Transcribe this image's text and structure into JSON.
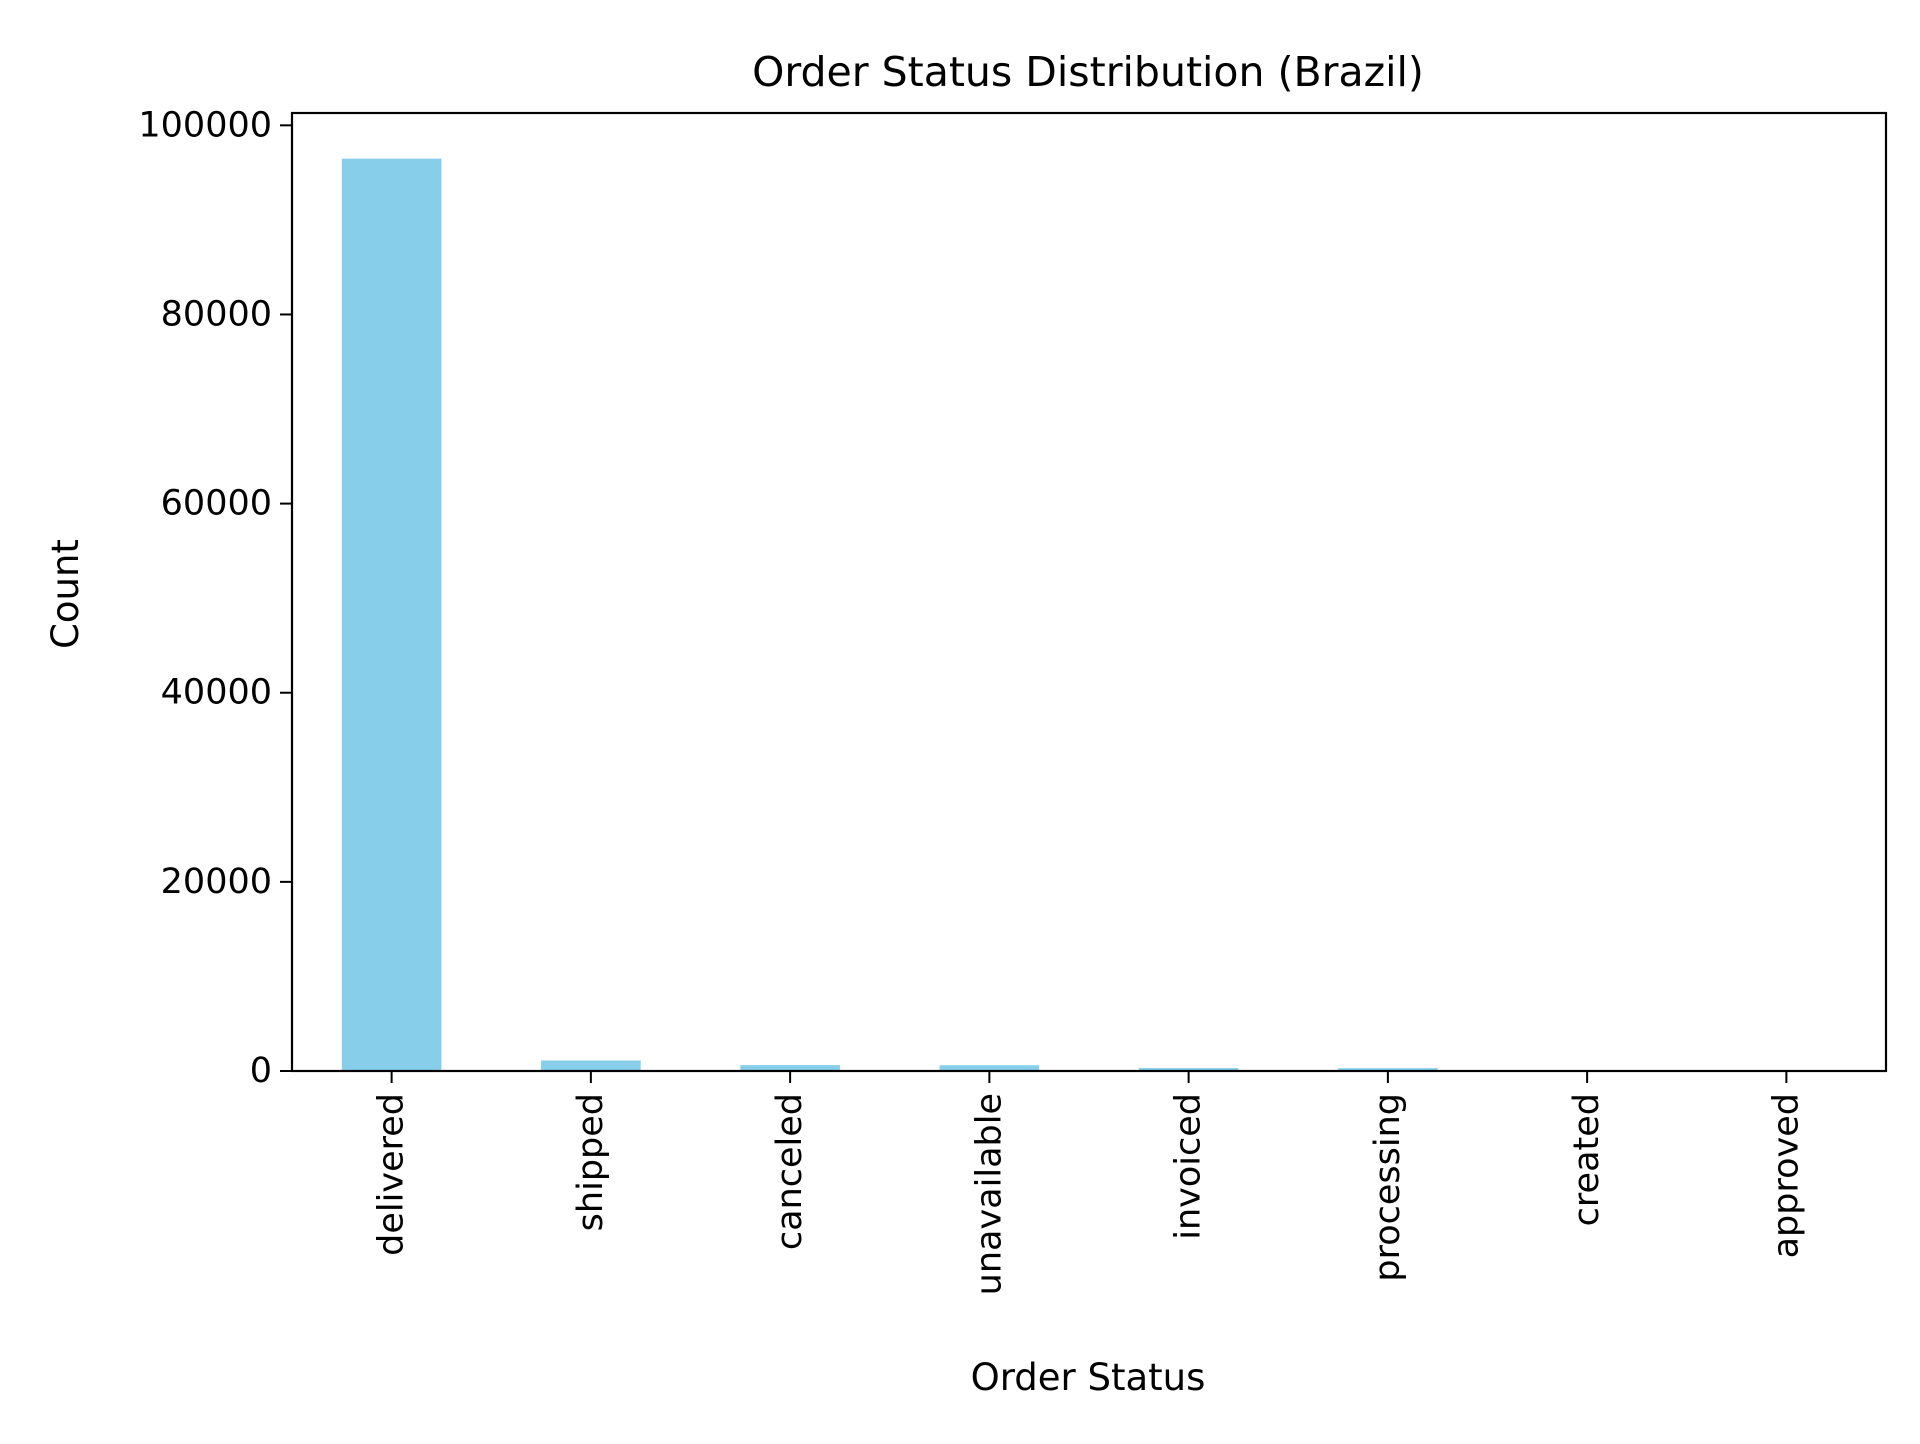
{
  "chart_data": {
    "type": "bar",
    "title": "Order Status Distribution (Brazil)",
    "xlabel": "Order Status",
    "ylabel": "Count",
    "categories": [
      "delivered",
      "shipped",
      "canceled",
      "unavailable",
      "invoiced",
      "processing",
      "created",
      "approved"
    ],
    "values": [
      96478,
      1107,
      625,
      609,
      314,
      301,
      5,
      2
    ],
    "ylim": [
      0,
      101304
    ],
    "yticks": [
      0,
      20000,
      40000,
      60000,
      80000,
      100000
    ],
    "ytick_labels": [
      "0",
      "20000",
      "40000",
      "60000",
      "80000",
      "100000"
    ],
    "bar_color": "#87ceeb",
    "grid": false,
    "legend": false
  }
}
